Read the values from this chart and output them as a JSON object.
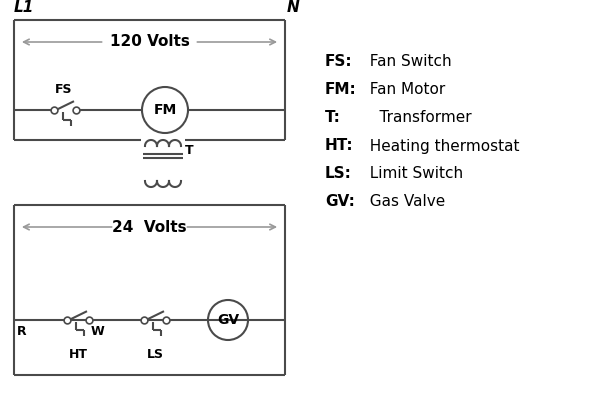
{
  "bg_color": "#ffffff",
  "line_color": "#4a4a4a",
  "arrow_color": "#999999",
  "text_color": "#000000",
  "legend": [
    [
      "FS:   Fan Switch"
    ],
    [
      "FM:  Fan Motor"
    ],
    [
      "T:     Transformer"
    ],
    [
      "HT:   Heating thermostat"
    ],
    [
      "LS:   Limit Switch"
    ],
    [
      "GV:  Gas Valve"
    ]
  ],
  "label_L1": "L1",
  "label_N": "N",
  "label_120V": "120 Volts",
  "label_24V": "24  Volts",
  "label_T": "T",
  "label_R": "R",
  "label_W": "W",
  "label_FS": "FS",
  "label_HT": "HT",
  "label_LS": "LS"
}
